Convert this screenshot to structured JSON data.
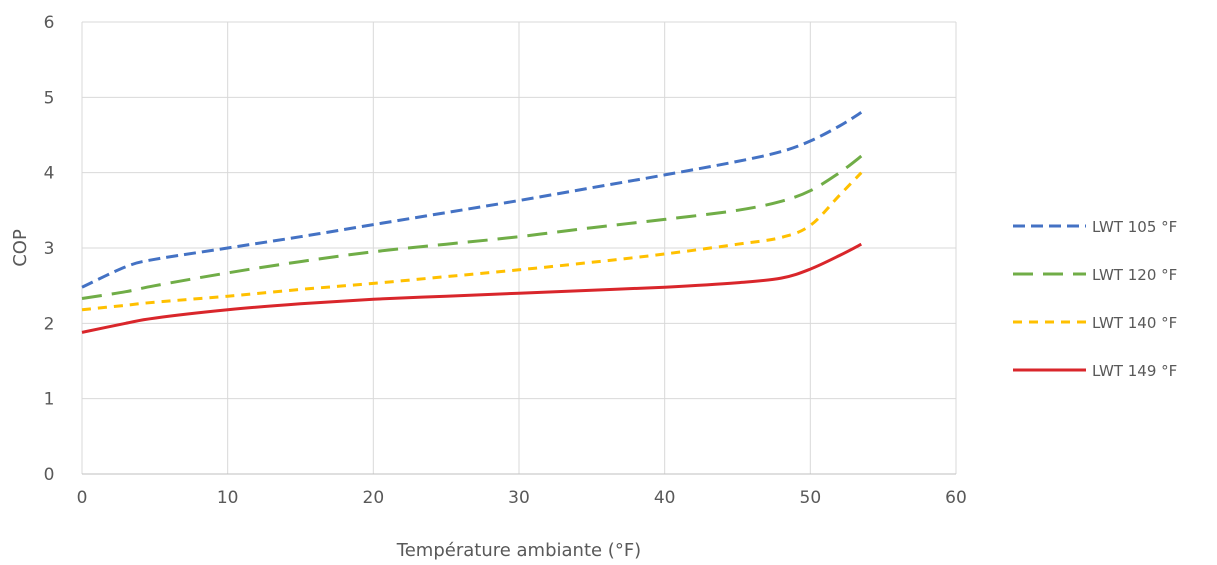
{
  "chart_data": {
    "type": "line",
    "xlabel": "Température ambiante (°F)",
    "ylabel": "COP",
    "xlim": [
      0,
      60
    ],
    "ylim": [
      0,
      6
    ],
    "xticks": [
      0,
      10,
      20,
      30,
      40,
      50,
      60
    ],
    "xtick_labels": [
      "0",
      "10",
      "20",
      "30",
      "40",
      "50",
      "60"
    ],
    "yticks": [
      0,
      1,
      2,
      3,
      4,
      5,
      6
    ],
    "ytick_labels": [
      "0",
      "1",
      "2",
      "3",
      "4",
      "5",
      "6"
    ],
    "grid": true,
    "legend_position": "right",
    "series": [
      {
        "name": "LWT 105 °F",
        "color": "#4472C4",
        "dash": "dashed",
        "x": [
          0,
          3,
          5,
          10,
          15,
          20,
          25,
          30,
          35,
          40,
          45,
          48,
          50,
          52,
          53.5
        ],
        "y": [
          2.48,
          2.75,
          2.85,
          3.0,
          3.15,
          3.31,
          3.47,
          3.63,
          3.8,
          3.97,
          4.15,
          4.28,
          4.42,
          4.62,
          4.8
        ]
      },
      {
        "name": "LWT 120 °F",
        "color": "#70AD47",
        "dash": "long-dashed",
        "x": [
          0,
          3,
          5,
          10,
          15,
          20,
          25,
          30,
          35,
          40,
          45,
          48,
          50,
          52,
          53.5
        ],
        "y": [
          2.33,
          2.42,
          2.5,
          2.67,
          2.82,
          2.95,
          3.05,
          3.15,
          3.27,
          3.38,
          3.5,
          3.62,
          3.76,
          4.0,
          4.22
        ]
      },
      {
        "name": "LWT 140 °F",
        "color": "#FFC000",
        "dash": "short-dashed",
        "x": [
          0,
          3,
          5,
          10,
          15,
          20,
          25,
          30,
          35,
          40,
          45,
          48,
          50,
          52,
          53.5
        ],
        "y": [
          2.18,
          2.24,
          2.28,
          2.36,
          2.45,
          2.53,
          2.62,
          2.71,
          2.81,
          2.92,
          3.05,
          3.14,
          3.3,
          3.7,
          4.0
        ]
      },
      {
        "name": "LWT 149 °F",
        "color": "#D9262B",
        "dash": "solid",
        "x": [
          0,
          3,
          5,
          10,
          15,
          20,
          25,
          30,
          35,
          40,
          45,
          48,
          50,
          52,
          53.5
        ],
        "y": [
          1.88,
          2.0,
          2.07,
          2.18,
          2.26,
          2.32,
          2.36,
          2.4,
          2.44,
          2.48,
          2.54,
          2.6,
          2.72,
          2.9,
          3.05
        ]
      }
    ]
  }
}
